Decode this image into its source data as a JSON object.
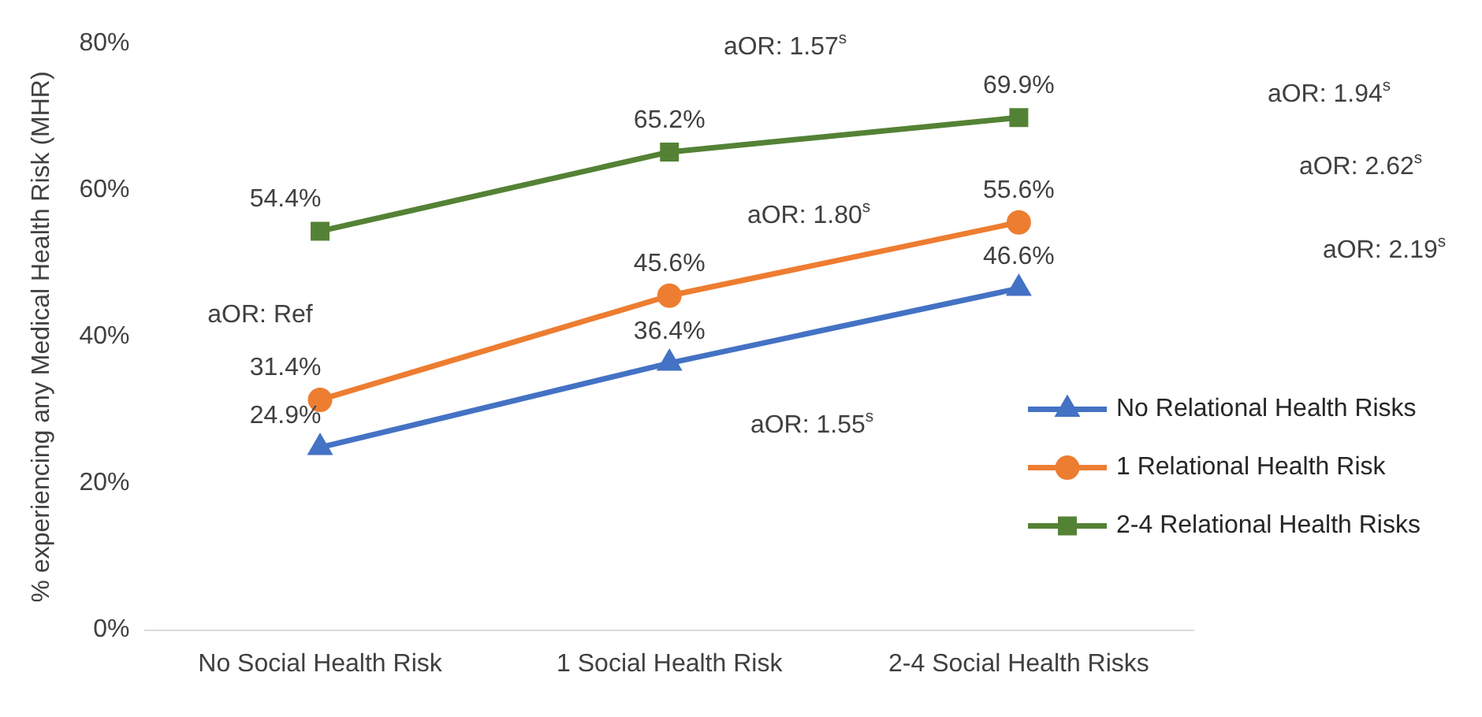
{
  "chart_data": {
    "type": "line",
    "ylabel": "% experiencing any Medical Health Risk (MHR)",
    "categories": [
      "No Social Health Risk",
      "1 Social Health Risk",
      "2-4 Social Health Risks"
    ],
    "series": [
      {
        "name": "No Relational Health Risks",
        "color": "#4472c4",
        "marker": "triangle",
        "values": [
          24.9,
          36.4,
          46.6
        ],
        "value_labels": [
          "24.9%",
          "36.4%",
          "46.6%"
        ]
      },
      {
        "name": "1 Relational Health Risk",
        "color": "#ed7d31",
        "marker": "circle",
        "values": [
          31.4,
          45.6,
          55.6
        ],
        "value_labels": [
          "31.4%",
          "45.6%",
          "55.6%"
        ]
      },
      {
        "name": "2-4 Relational Health Risks",
        "color": "#548235",
        "marker": "square",
        "values": [
          54.4,
          65.2,
          69.9
        ],
        "value_labels": [
          "54.4%",
          "65.2%",
          "69.9%"
        ]
      }
    ],
    "ylim": [
      0,
      80
    ],
    "yticks": [
      {
        "value": 0,
        "label": "0%"
      },
      {
        "value": 20,
        "label": "20%"
      },
      {
        "value": 40,
        "label": "40%"
      },
      {
        "value": 60,
        "label": "60%"
      },
      {
        "value": 80,
        "label": "80%"
      }
    ],
    "grid": false,
    "legend": "bottom right",
    "annotations": [
      "aOR: Ref",
      "aOR: 1.57$^{s}$",
      "aOR: 1.80$^{s}$",
      "aOR: 1.55$^{s}$",
      "aOR: 1.94$^{s}$",
      "aOR: 2.62$^{s}$",
      "aOR: 2.19$^{s}$"
    ]
  }
}
